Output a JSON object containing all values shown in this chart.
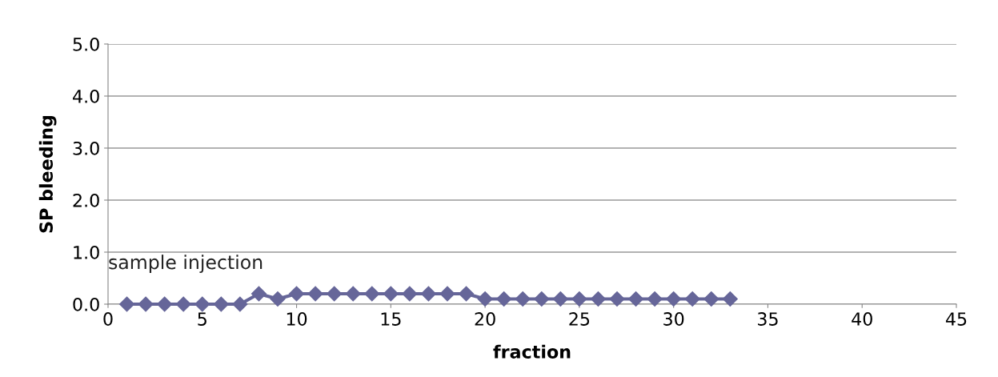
{
  "chart_data": {
    "type": "line",
    "xlabel": "fraction",
    "ylabel": "SP bleeding",
    "x": [
      1,
      2,
      3,
      4,
      5,
      6,
      7,
      8,
      9,
      10,
      11,
      12,
      13,
      14,
      15,
      16,
      17,
      18,
      19,
      20,
      21,
      22,
      23,
      24,
      25,
      26,
      27,
      28,
      29,
      30,
      31,
      32,
      33
    ],
    "series": [
      {
        "color": "#666699",
        "values": [
          0,
          0,
          0,
          0,
          0,
          0,
          0,
          0.2,
          0.1,
          0.2,
          0.2,
          0.2,
          0.2,
          0.2,
          0.2,
          0.2,
          0.2,
          0.2,
          0.2,
          0.1,
          0.1,
          0.1,
          0.1,
          0.1,
          0.1,
          0.1,
          0.1,
          0.1,
          0.1,
          0.1,
          0.1,
          0.1,
          0.1
        ]
      }
    ],
    "xlim": [
      0,
      45
    ],
    "xticks": [
      0,
      5,
      10,
      15,
      20,
      25,
      30,
      35,
      40,
      45
    ],
    "ylim": [
      0,
      5
    ],
    "yticks": [
      {
        "value": 0,
        "label": "0.0"
      },
      {
        "value": 1,
        "label": "1.0"
      },
      {
        "value": 2,
        "label": "2.0"
      },
      {
        "value": 3,
        "label": "3.0"
      },
      {
        "value": 4,
        "label": "4.0"
      },
      {
        "value": 5,
        "label": "5.0"
      }
    ],
    "grid": "y",
    "marker": "diamond",
    "line_style": "solid",
    "legend": false,
    "annotations": [
      "sample injection"
    ]
  }
}
